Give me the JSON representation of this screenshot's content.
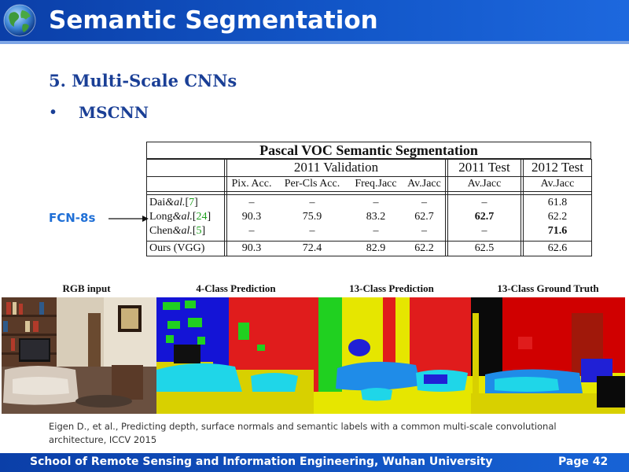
{
  "header": {
    "title": "Semantic Segmentation"
  },
  "content": {
    "section_heading": "5. Multi-Scale CNNs",
    "bullet_symbol": "•",
    "bullet": "MSCNN",
    "annotation_label": "FCN-8s"
  },
  "table": {
    "title": "Pascal VOC Semantic Segmentation",
    "groups": [
      "2011 Validation",
      "2011 Test",
      "2012 Test"
    ],
    "columns": [
      "Pix. Acc.",
      "Per-Cls Acc.",
      "Freq.Jacc",
      "Av.Jacc",
      "Av.Jacc",
      "Av.Jacc"
    ],
    "rows": [
      {
        "name": "Dai",
        "suffix": "&al.",
        "cite": "[7]",
        "close": "]",
        "open": "[",
        "cite_num": "7",
        "values": [
          "–",
          "–",
          "–",
          "–",
          "–",
          "61.8"
        ]
      },
      {
        "name": "Long",
        "suffix": "&al.",
        "cite": "[24]",
        "open": "[",
        "cite_num": "24",
        "close": "]",
        "values": [
          "90.3",
          "75.9",
          "83.2",
          "62.7",
          "62.7",
          "62.2"
        ]
      },
      {
        "name": "Chen",
        "suffix": "&al.",
        "cite": "[5]",
        "open": "[",
        "cite_num": "5",
        "close": "]",
        "values": [
          "–",
          "–",
          "–",
          "–",
          "–",
          "71.6"
        ]
      },
      {
        "name": "Ours (VGG)",
        "suffix": "",
        "cite": "",
        "open": "",
        "cite_num": "",
        "close": "",
        "values": [
          "90.3",
          "72.4",
          "82.9",
          "62.2",
          "62.5",
          "62.6"
        ]
      }
    ]
  },
  "figure": {
    "panels": [
      "RGB input",
      "4-Class Prediction",
      "13-Class Prediction",
      "13-Class Ground Truth"
    ]
  },
  "citation": {
    "text": "Eigen D., et al., Predicting depth, surface normals and semantic labels with a common multi-scale convolutional architecture, ICCV 2015"
  },
  "footer": {
    "institution": "School of Remote Sensing and Information Engineering, Wuhan University",
    "page": "Page 42"
  },
  "colors": {
    "header_blue": "#1256c8",
    "heading_blue": "#1a3f96",
    "fcn_label_blue": "#1f6fd6",
    "citation_green": "#1fa11f"
  }
}
